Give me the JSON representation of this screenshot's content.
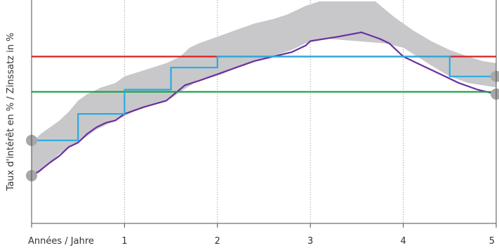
{
  "chart_data": {
    "type": "line",
    "xlabel": "Années / Jahre",
    "ylabel": "Taux d'intérêt en % / Zinssatz in %",
    "x_ticks": [
      1,
      2,
      3,
      4,
      5
    ],
    "xlim": [
      0,
      5
    ],
    "ylim": [
      0,
      100
    ],
    "grid_x": true,
    "grid_y": false,
    "band": {
      "upper": [
        [
          0,
          36
        ],
        [
          0.1,
          40
        ],
        [
          0.2,
          43
        ],
        [
          0.3,
          46
        ],
        [
          0.4,
          50
        ],
        [
          0.5,
          55
        ],
        [
          0.6,
          58
        ],
        [
          0.75,
          61
        ],
        [
          0.9,
          63
        ],
        [
          1.0,
          66
        ],
        [
          1.15,
          68
        ],
        [
          1.3,
          70
        ],
        [
          1.45,
          72
        ],
        [
          1.6,
          75
        ],
        [
          1.7,
          79
        ],
        [
          1.8,
          81
        ],
        [
          2.0,
          84
        ],
        [
          2.2,
          87
        ],
        [
          2.4,
          90
        ],
        [
          2.6,
          92
        ],
        [
          2.75,
          94
        ],
        [
          2.85,
          96
        ],
        [
          2.95,
          98
        ],
        [
          3.1,
          100
        ],
        [
          3.3,
          100
        ],
        [
          3.5,
          100
        ],
        [
          3.7,
          100
        ],
        [
          3.9,
          93
        ],
        [
          4.1,
          87
        ],
        [
          4.3,
          82
        ],
        [
          4.5,
          78
        ],
        [
          4.7,
          75
        ],
        [
          4.85,
          73
        ],
        [
          5.0,
          72
        ]
      ],
      "lower": [
        [
          0,
          20
        ],
        [
          0.1,
          23
        ],
        [
          0.2,
          27
        ],
        [
          0.3,
          31
        ],
        [
          0.5,
          36
        ],
        [
          0.7,
          42
        ],
        [
          0.9,
          46
        ],
        [
          1.1,
          50
        ],
        [
          1.3,
          53
        ],
        [
          1.5,
          56
        ],
        [
          1.6,
          59
        ],
        [
          1.75,
          63
        ],
        [
          1.9,
          65
        ],
        [
          2.05,
          67
        ],
        [
          2.2,
          70
        ],
        [
          2.35,
          72
        ],
        [
          2.5,
          74
        ],
        [
          2.65,
          76
        ],
        [
          2.8,
          78
        ],
        [
          2.9,
          80
        ],
        [
          3.0,
          82
        ],
        [
          3.2,
          83
        ],
        [
          3.5,
          82
        ],
        [
          3.8,
          81
        ],
        [
          4.0,
          79
        ],
        [
          4.15,
          75
        ],
        [
          4.3,
          71
        ],
        [
          4.5,
          66
        ],
        [
          4.7,
          63
        ],
        [
          4.85,
          62
        ],
        [
          5.0,
          61
        ]
      ]
    },
    "series": [
      {
        "color": "#6b2fa0",
        "shape": "line",
        "points": [
          [
            0,
            21
          ],
          [
            0.08,
            23
          ],
          [
            0.2,
            27
          ],
          [
            0.3,
            30
          ],
          [
            0.4,
            34
          ],
          [
            0.5,
            36
          ],
          [
            0.6,
            40
          ],
          [
            0.7,
            43
          ],
          [
            0.8,
            45
          ],
          [
            0.9,
            46
          ],
          [
            1.0,
            49
          ],
          [
            1.2,
            52
          ],
          [
            1.45,
            55
          ],
          [
            1.65,
            62
          ],
          [
            1.8,
            64
          ],
          [
            2.0,
            67
          ],
          [
            2.2,
            70
          ],
          [
            2.4,
            73
          ],
          [
            2.6,
            75
          ],
          [
            2.8,
            77
          ],
          [
            2.95,
            80
          ],
          [
            3.0,
            82
          ],
          [
            3.3,
            84
          ],
          [
            3.55,
            86
          ],
          [
            3.75,
            83
          ],
          [
            3.85,
            81
          ],
          [
            4.0,
            75
          ],
          [
            4.2,
            71
          ],
          [
            4.4,
            67
          ],
          [
            4.6,
            63
          ],
          [
            4.8,
            60
          ],
          [
            5.0,
            58
          ]
        ]
      },
      {
        "color": "#29abe2",
        "shape": "step",
        "points": [
          [
            0,
            37
          ],
          [
            0.5,
            37
          ],
          [
            0.5,
            49
          ],
          [
            1.0,
            49
          ],
          [
            1.0,
            60
          ],
          [
            1.5,
            60
          ],
          [
            1.5,
            70
          ],
          [
            2.0,
            70
          ],
          [
            2.0,
            75
          ],
          [
            4.5,
            75
          ],
          [
            4.5,
            66
          ],
          [
            5.0,
            66
          ]
        ]
      },
      {
        "color": "#d62026",
        "shape": "hline",
        "points": [
          [
            0,
            75
          ],
          [
            5,
            75
          ]
        ]
      },
      {
        "color": "#1a9e3f",
        "shape": "hline",
        "points": [
          [
            0,
            59
          ],
          [
            5,
            59
          ]
        ]
      }
    ],
    "markers": [
      [
        0,
        37
      ],
      [
        0,
        21
      ],
      [
        5,
        66
      ],
      [
        5,
        58
      ]
    ]
  },
  "colors": {
    "band": "#c8c8ca",
    "axis": "#4d4d4d",
    "grid": "#9a9a9a",
    "marker": "#a7a7a9"
  }
}
